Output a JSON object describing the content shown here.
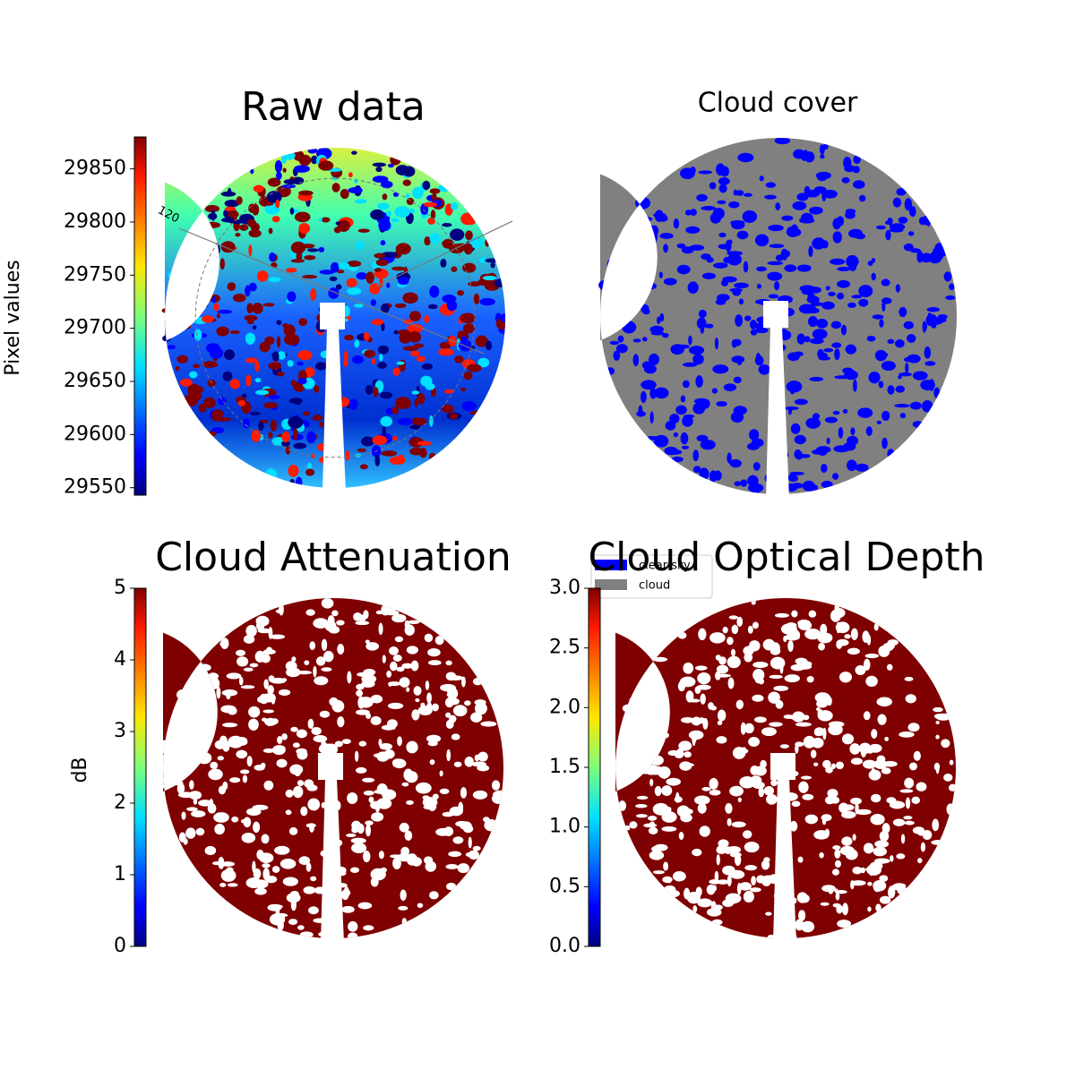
{
  "chart_data": [
    {
      "type": "image",
      "title": "Raw data",
      "ylabel": "Pixel values",
      "colormap": "jet",
      "ylim": [
        29543,
        29880
      ],
      "yticks": [
        29550,
        29600,
        29650,
        29700,
        29750,
        29800,
        29850
      ],
      "annotation": "120"
    },
    {
      "type": "mask",
      "title": "Cloud cover",
      "series": [
        {
          "name": "clear sky",
          "color": "#0000ff"
        },
        {
          "name": "cloud",
          "color": "#808080"
        }
      ]
    },
    {
      "type": "image",
      "title": "Cloud Attenuation",
      "ylabel": "dB",
      "colormap": "jet",
      "ylim": [
        0,
        5
      ],
      "yticks": [
        0,
        1,
        2,
        3,
        4,
        5
      ]
    },
    {
      "type": "image",
      "title": "Cloud Optical Depth",
      "colormap": "jet",
      "ylim": [
        0,
        3
      ],
      "yticks": [
        {
          "value": 0,
          "label": "0.0"
        },
        0.5,
        {
          "value": 1,
          "label": "1.0"
        },
        1.5,
        {
          "value": 2,
          "label": "2.0"
        },
        2.5,
        {
          "value": 3,
          "label": "3.0"
        }
      ]
    }
  ]
}
